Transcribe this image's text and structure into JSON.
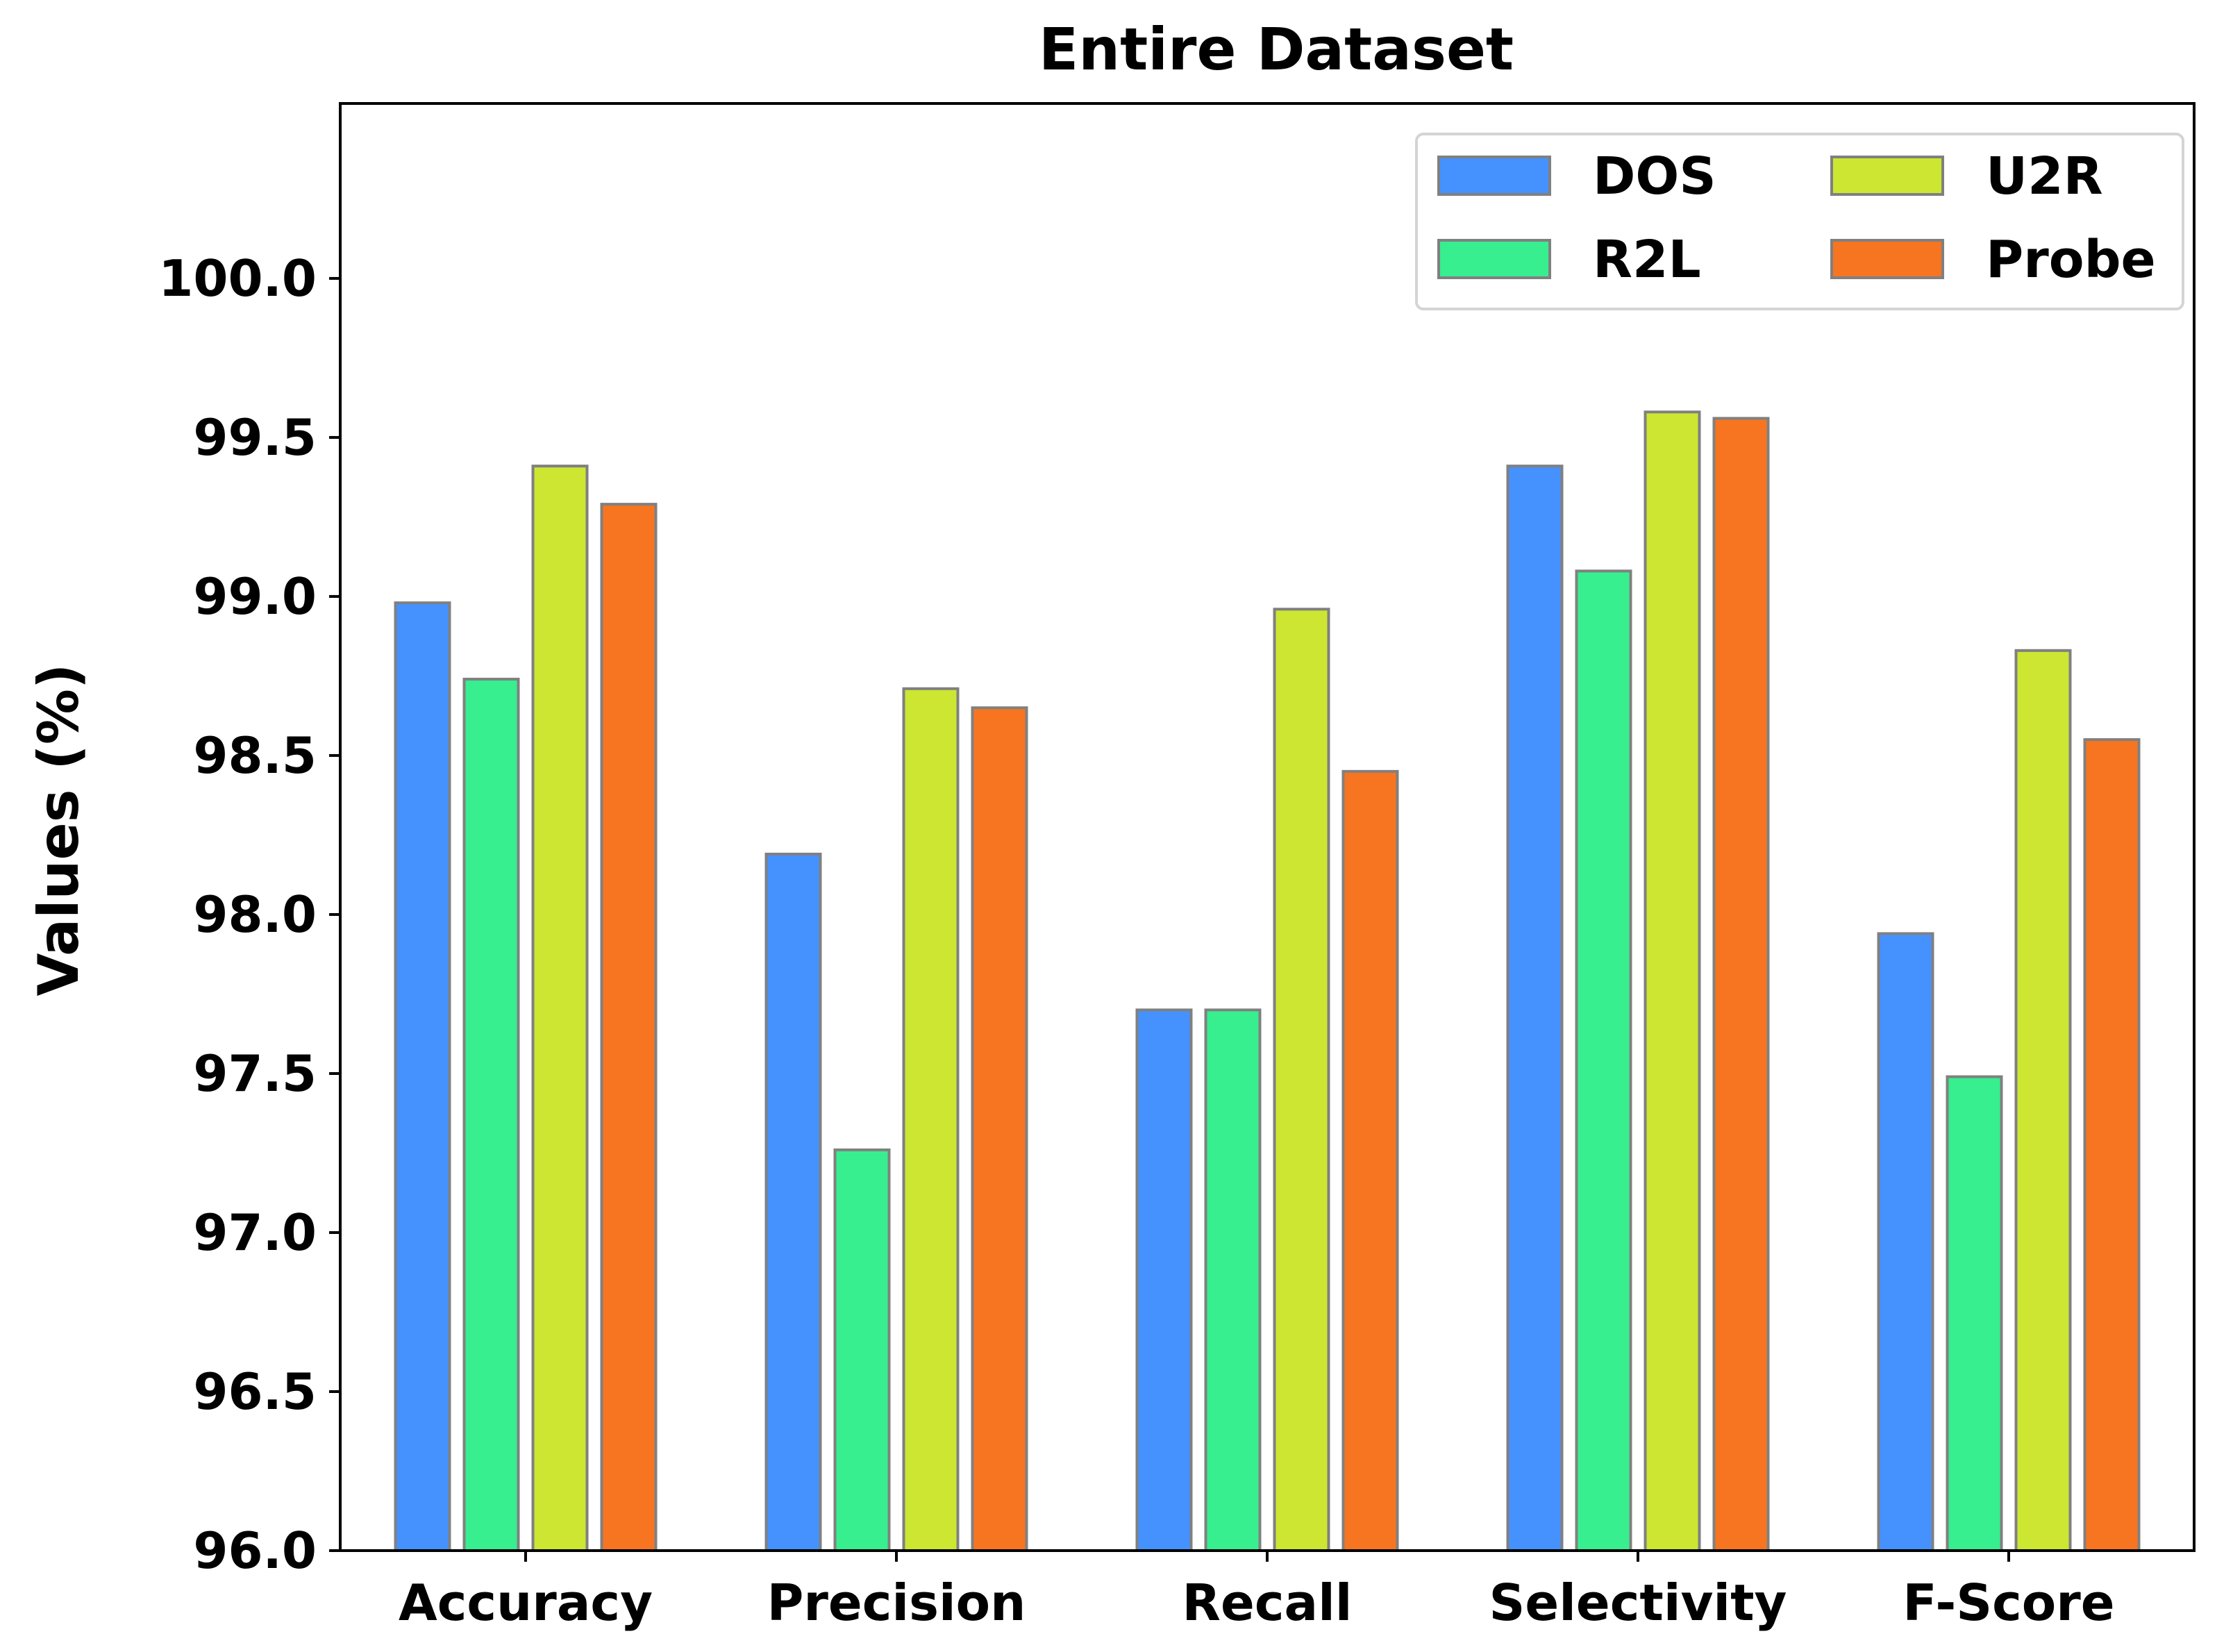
{
  "chart_data": {
    "type": "bar",
    "title": "Entire Dataset",
    "xlabel": "",
    "ylabel": "Values (%)",
    "categories": [
      "Accuracy",
      "Precision",
      "Recall",
      "Selectivity",
      "F-Score"
    ],
    "series": [
      {
        "name": "DOS",
        "color": "#4592FF",
        "values": [
          98.98,
          98.19,
          97.7,
          99.41,
          97.94
        ]
      },
      {
        "name": "R2L",
        "color": "#37EF8F",
        "values": [
          98.74,
          97.26,
          97.7,
          99.08,
          97.49
        ]
      },
      {
        "name": "U2R",
        "color": "#CDE632",
        "values": [
          99.41,
          98.71,
          98.96,
          99.58,
          98.83
        ]
      },
      {
        "name": "Probe",
        "color": "#F77520",
        "values": [
          99.29,
          98.65,
          98.45,
          99.56,
          98.55
        ]
      }
    ],
    "ylim": [
      96.0,
      100.55
    ],
    "yticks": [
      "96.0",
      "96.5",
      "97.0",
      "97.5",
      "98.0",
      "98.5",
      "99.0",
      "99.5",
      "100.0"
    ],
    "legend_position": "top-right",
    "legend_columns": 2,
    "grid": false
  }
}
